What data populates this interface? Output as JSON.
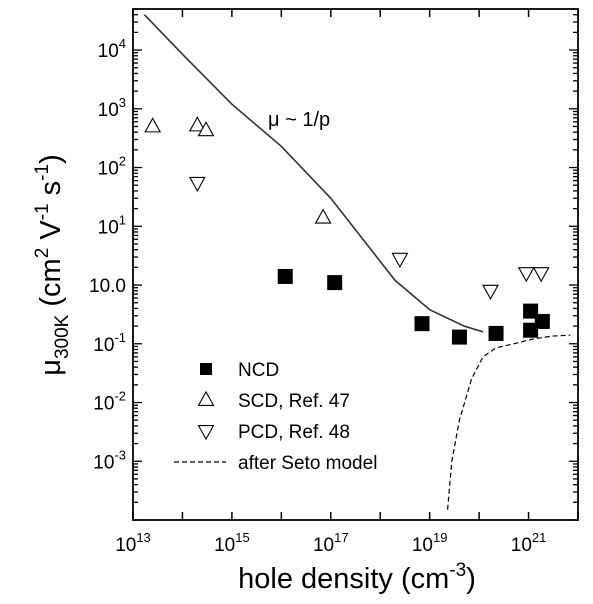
{
  "chart_data": {
    "type": "scatter",
    "title": "",
    "x_scale": "log",
    "y_scale": "log",
    "xlim": [
      10000000000000.0,
      1e+22
    ],
    "ylim": [
      0.0001,
      50000
    ],
    "xlabel": {
      "text": "hole density (cm",
      "sup": "-3",
      "tail": ")"
    },
    "ylabel": {
      "main": "μ",
      "sub": "300K",
      "rest": " (cm",
      "sup1": "2",
      "mid1": " V",
      "sup2": "-1",
      "mid2": " s",
      "sup3": "-1",
      "tail": ")"
    },
    "x_ticks": [
      {
        "value": 10000000000000.0,
        "base": "10",
        "exp": "13"
      },
      {
        "value": 1000000000000000.0,
        "base": "10",
        "exp": "15"
      },
      {
        "value": 1e+17,
        "base": "10",
        "exp": "17"
      },
      {
        "value": 1e+19,
        "base": "10",
        "exp": "19"
      },
      {
        "value": 1e+21,
        "base": "10",
        "exp": "21"
      }
    ],
    "y_ticks": [
      {
        "value": 10000,
        "base": "10",
        "exp": "4"
      },
      {
        "value": 1000,
        "base": "10",
        "exp": "3"
      },
      {
        "value": 100,
        "base": "10",
        "exp": "2"
      },
      {
        "value": 10,
        "base": "10",
        "exp": "1"
      },
      {
        "value": 1,
        "label": "10",
        "suffix": "0"
      },
      {
        "value": 0.1,
        "base": "10",
        "exp": "-1"
      },
      {
        "value": 0.01,
        "base": "10",
        "exp": "-2"
      },
      {
        "value": 0.001,
        "base": "10",
        "exp": "-3"
      }
    ],
    "annotation": "μ ~ 1/p",
    "legend": {
      "placement": "bottom-left",
      "entries": [
        {
          "label": "NCD",
          "marker": "filled-square"
        },
        {
          "label": "SCD, Ref. 47",
          "marker": "open-triangle-up"
        },
        {
          "label": "PCD, Ref. 48",
          "marker": "open-triangle-down"
        },
        {
          "label": "after Seto model",
          "marker": "dashed-line"
        }
      ]
    },
    "series": [
      {
        "name": "NCD",
        "marker": "filled-square",
        "points": [
          [
            1.2e+16,
            1.4
          ],
          [
            1.2e+17,
            1.1
          ],
          [
            7e+18,
            0.22
          ],
          [
            4e+19,
            0.13
          ],
          [
            2.2e+20,
            0.15
          ],
          [
            1.1e+21,
            0.36
          ],
          [
            1.1e+21,
            0.17
          ],
          [
            1.9e+21,
            0.24
          ]
        ]
      },
      {
        "name": "SCD, Ref. 47",
        "marker": "open-triangle-up",
        "points": [
          [
            25000000000000.0,
            500
          ],
          [
            200000000000000.0,
            520
          ],
          [
            300000000000000.0,
            430
          ],
          [
            7e+16,
            14
          ]
        ]
      },
      {
        "name": "PCD, Ref. 48",
        "marker": "open-triangle-down",
        "points": [
          [
            200000000000000.0,
            55
          ],
          [
            2.5e+18,
            2.8
          ],
          [
            1.7e+20,
            0.8
          ],
          [
            9e+20,
            1.6
          ],
          [
            1.8e+21,
            1.6
          ]
        ]
      },
      {
        "name": "μ ~ 1/p",
        "line": "solid",
        "points": [
          [
            17000000000000.0,
            40000
          ],
          [
            100000000000000.0,
            8500
          ],
          [
            1000000000000000.0,
            1200
          ],
          [
            1e+16,
            230
          ],
          [
            1e+17,
            30
          ],
          [
            2e+18,
            1.2
          ],
          [
            1e+19,
            0.38
          ],
          [
            5e+19,
            0.2
          ],
          [
            1.2e+20,
            0.16
          ]
        ]
      },
      {
        "name": "after Seto model",
        "line": "dashed",
        "points": [
          [
            2.3e+19,
            0.00015
          ],
          [
            2.8e+19,
            0.001
          ],
          [
            4e+19,
            0.005
          ],
          [
            7e+19,
            0.025
          ],
          [
            1.2e+20,
            0.06
          ],
          [
            2.2e+20,
            0.085
          ],
          [
            5e+20,
            0.1
          ],
          [
            1.2e+21,
            0.12
          ],
          [
            3e+21,
            0.135
          ],
          [
            7e+21,
            0.14
          ]
        ]
      }
    ]
  }
}
